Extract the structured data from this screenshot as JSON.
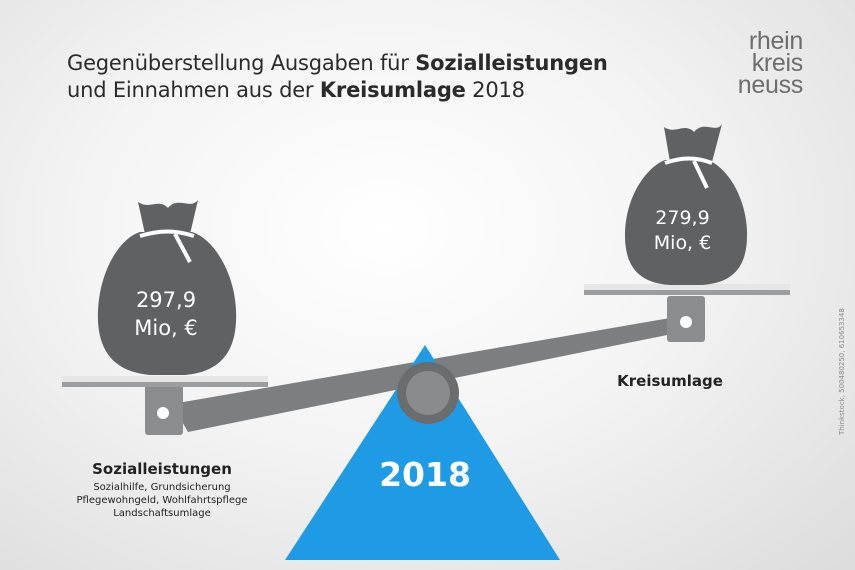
{
  "title": {
    "line1_a": "Gegenüberstellung Ausgaben für ",
    "line1_b": "Sozialleistungen",
    "line2_a": "und Einnahmen aus der ",
    "line2_b": "Kreisumlage",
    "line2_c": " 2018"
  },
  "logo": {
    "line1": "rhein",
    "line2": "kreis",
    "line3": "neuss"
  },
  "left_bag": {
    "value": "297,9",
    "unit": "Mio, €"
  },
  "right_bag": {
    "value": "279,9",
    "unit": "Mio, €"
  },
  "fulcrum": {
    "year": "2018"
  },
  "left_label": {
    "title": "Sozialleistungen",
    "items": [
      "Sozialhilfe, Grundsicherung",
      "Pflegewohngeld, Wohlfahrtspflege",
      "Landschaftsumlage"
    ]
  },
  "right_label": {
    "title": "Kreisumlage"
  },
  "credit": "Thinkstock, 500480250, 610653348",
  "colors": {
    "accent_blue": "#1f9be6",
    "bag_gray": "#5f6163",
    "beam_gray": "#7d7e80"
  }
}
